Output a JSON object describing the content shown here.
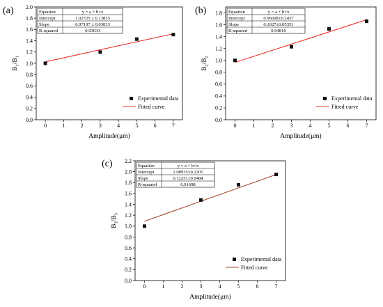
{
  "figure": {
    "legend": {
      "points_label": "Experimental data",
      "line_label": "Fitted curve"
    },
    "colors": {
      "fit_a": "#e8302a",
      "fit_b": "#e8302a",
      "fit_c": "#a04a2a",
      "points": "#111111"
    }
  },
  "chart_data": [
    {
      "type": "scatter",
      "panel_label": "(a)",
      "x": [
        0,
        3,
        5,
        7
      ],
      "y": [
        1.0,
        1.2,
        1.43,
        1.51
      ],
      "xlabel": "Amplitude(μm)",
      "ylabel_main": "B",
      "ylabel_sub1": "1",
      "ylabel_mid": "/B",
      "ylabel_sub2": "1",
      "xlim": [
        -0.5,
        7.5
      ],
      "ylim": [
        0.0,
        2.0
      ],
      "xticks": [
        "0",
        "1",
        "2",
        "3",
        "4",
        "5",
        "6",
        "7"
      ],
      "yticks": [
        "0.0",
        "0.2",
        "0.4",
        "0.6",
        "0.8",
        "1.0",
        "1.2",
        "1.4",
        "1.6",
        "1.8",
        "2.0"
      ],
      "fit": {
        "intercept": 1.02725,
        "slope": 0.07107
      },
      "fit_table": [
        [
          "Equation",
          "y = a + b×x"
        ],
        [
          "Intercept",
          "1.02725 ± 0.13815"
        ],
        [
          "Slope",
          "0.07107 ± 0.03033"
        ],
        [
          "R-squared",
          "0.93033"
        ]
      ],
      "legend_position": "bottom-right"
    },
    {
      "type": "scatter",
      "panel_label": "(b)",
      "x": [
        0,
        3,
        5,
        7
      ],
      "y": [
        1.0,
        1.23,
        1.53,
        1.66
      ],
      "xlabel": "Amplitude(μm)",
      "ylabel_main": "B",
      "ylabel_sub1": "2",
      "ylabel_mid": "/B",
      "ylabel_sub2": "2",
      "xlim": [
        -0.5,
        7.5
      ],
      "ylim": [
        0.0,
        1.9
      ],
      "xticks": [
        "0",
        "1",
        "2",
        "3",
        "4",
        "5",
        "6",
        "7"
      ],
      "yticks": [
        "0.0",
        "0.2",
        "0.4",
        "0.6",
        "0.8",
        "1.0",
        "1.2",
        "1.4",
        "1.6",
        "1.8"
      ],
      "fit": {
        "intercept": 0.96608,
        "slope": 0.1027
      },
      "fit_table": [
        [
          "Equation",
          "y = a + b×x"
        ],
        [
          "Intercept",
          "0.96608±0.2437"
        ],
        [
          "Slope",
          "0.1027±0.05351"
        ],
        [
          "R-squared",
          "0.94816"
        ]
      ],
      "legend_position": "bottom-right"
    },
    {
      "type": "scatter",
      "panel_label": "(c)",
      "x": [
        0,
        3,
        5,
        7
      ],
      "y": [
        1.0,
        1.48,
        1.76,
        1.95
      ],
      "xlabel": "Amplitude(μm)",
      "ylabel_main": "B",
      "ylabel_sub1": "3",
      "ylabel_mid": "/B",
      "ylabel_sub2": "3",
      "xlim": [
        -0.5,
        7.5
      ],
      "ylim": [
        0.0,
        2.2
      ],
      "xticks": [
        "0",
        "1",
        "2",
        "3",
        "4",
        "5",
        "6",
        "7"
      ],
      "yticks": [
        "0.0",
        "0.2",
        "0.4",
        "0.6",
        "0.8",
        "1.0",
        "1.2",
        "1.4",
        "1.6",
        "1.8",
        "2.0",
        "2.2"
      ],
      "fit": {
        "intercept": 1.08935,
        "slope": 0.12251
      },
      "fit_table": [
        [
          "Equation",
          "y = a + b×x"
        ],
        [
          "Intercept",
          "1.08935±0.2205"
        ],
        [
          "Slope",
          "0.12251±0.0484"
        ],
        [
          "R-squared",
          "0.91698"
        ]
      ],
      "legend_position": "bottom-right"
    }
  ]
}
